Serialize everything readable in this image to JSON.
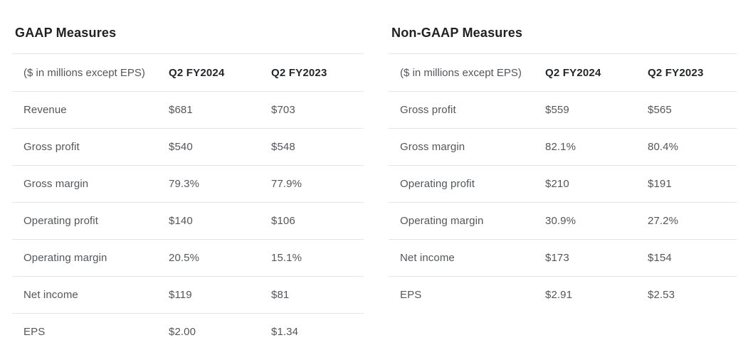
{
  "colors": {
    "text_primary": "#232120",
    "text_secondary": "#54565a",
    "divider": "#e5e5e6",
    "background": "#ffffff"
  },
  "tables": [
    {
      "title": "GAAP Measures",
      "unit_label": "($ in millions except EPS)",
      "columns": [
        "Q2 FY2024",
        "Q2 FY2023"
      ],
      "rows": [
        {
          "label": "Revenue",
          "values": [
            "$681",
            "$703"
          ]
        },
        {
          "label": "Gross profit",
          "values": [
            "$540",
            "$548"
          ]
        },
        {
          "label": "Gross margin",
          "values": [
            "79.3%",
            "77.9%"
          ]
        },
        {
          "label": "Operating profit",
          "values": [
            "$140",
            "$106"
          ]
        },
        {
          "label": "Operating margin",
          "values": [
            "20.5%",
            "15.1%"
          ]
        },
        {
          "label": "Net income",
          "values": [
            "$119",
            "$81"
          ]
        },
        {
          "label": "EPS",
          "values": [
            "$2.00",
            "$1.34"
          ]
        }
      ]
    },
    {
      "title": "Non-GAAP Measures",
      "unit_label": "($ in millions except EPS)",
      "columns": [
        "Q2 FY2024",
        "Q2 FY2023"
      ],
      "rows": [
        {
          "label": "Gross profit",
          "values": [
            "$559",
            "$565"
          ]
        },
        {
          "label": "Gross margin",
          "values": [
            "82.1%",
            "80.4%"
          ]
        },
        {
          "label": "Operating profit",
          "values": [
            "$210",
            "$191"
          ]
        },
        {
          "label": "Operating margin",
          "values": [
            "30.9%",
            "27.2%"
          ]
        },
        {
          "label": "Net income",
          "values": [
            "$173",
            "$154"
          ]
        },
        {
          "label": "EPS",
          "values": [
            "$2.91",
            "$2.53"
          ]
        }
      ]
    }
  ]
}
